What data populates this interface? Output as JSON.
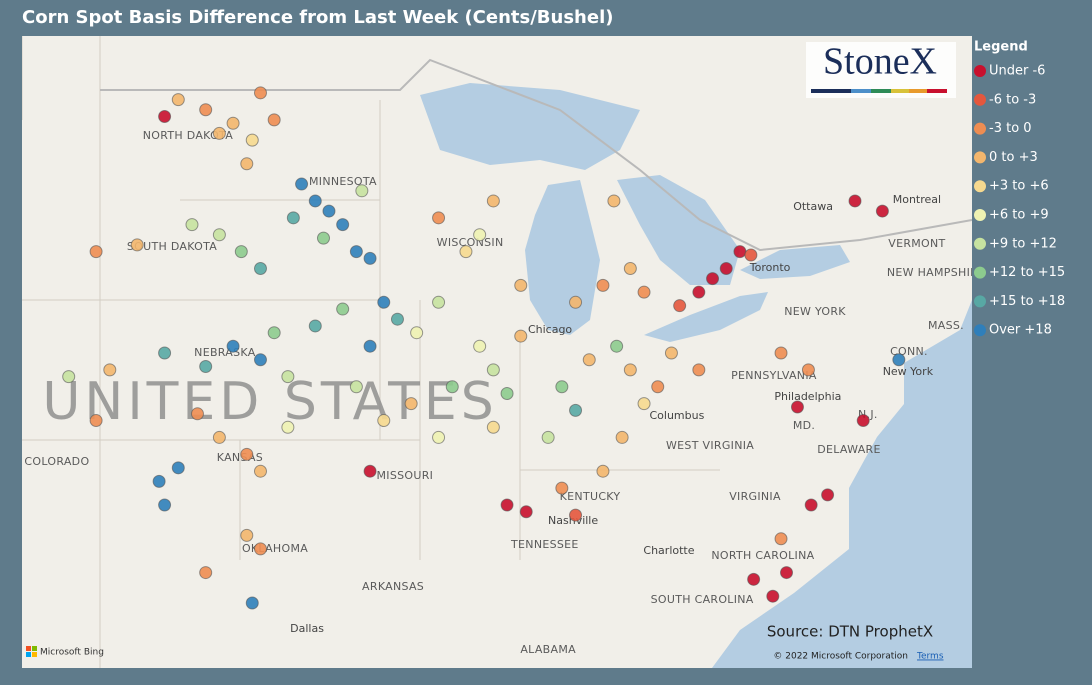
{
  "header": {
    "title": "Corn Spot Basis Difference from Last Week (Cents/Bushel)"
  },
  "logo": "StoneX",
  "legend": {
    "title": "Legend",
    "items": [
      {
        "label": "Under -6",
        "color": "#c8102e"
      },
      {
        "label": "-6 to -3",
        "color": "#e4573d"
      },
      {
        "label": "-3 to 0",
        "color": "#ee8d52"
      },
      {
        "label": "0 to +3",
        "color": "#f3b66d"
      },
      {
        "label": "+3 to +6",
        "color": "#f6d98f"
      },
      {
        "label": "+6 to +9",
        "color": "#eef2b2"
      },
      {
        "label": "+9 to +12",
        "color": "#c6e2a0"
      },
      {
        "label": "+12 to +15",
        "color": "#8dcb8e"
      },
      {
        "label": "+15 to +18",
        "color": "#58a8a4"
      },
      {
        "label": "Over +18",
        "color": "#2f7fba"
      }
    ]
  },
  "map": {
    "country": [
      {
        "text": "UNITED STATES",
        "lon": -97.15,
        "lat": 39.46
      }
    ],
    "states": [
      {
        "text": "NORTH DAKOTA",
        "lon": -100.15,
        "lat": 47.42
      },
      {
        "text": "MINNESOTA",
        "lon": -94.49,
        "lat": 46.06
      },
      {
        "text": "SOUTH DAKOTA",
        "lon": -100.73,
        "lat": 44.14
      },
      {
        "text": "WISCONSIN",
        "lon": -89.85,
        "lat": 44.26
      },
      {
        "text": "NEBRASKA",
        "lon": -98.8,
        "lat": 41.0
      },
      {
        "text": "COLORADO",
        "lon": -104.93,
        "lat": 37.77
      },
      {
        "text": "KANSAS",
        "lon": -98.25,
        "lat": 37.89
      },
      {
        "text": "MISSOURI",
        "lon": -92.23,
        "lat": 37.36
      },
      {
        "text": "OKLAHOMA",
        "lon": -96.97,
        "lat": 35.2
      },
      {
        "text": "ARKANSAS",
        "lon": -92.66,
        "lat": 34.07
      },
      {
        "text": "KENTUCKY",
        "lon": -85.47,
        "lat": 36.74
      },
      {
        "text": "TENNESSEE",
        "lon": -87.12,
        "lat": 35.32
      },
      {
        "text": "ALABAMA",
        "lon": -87.0,
        "lat": 32.21
      },
      {
        "text": "WEST VIRGINIA",
        "lon": -81.09,
        "lat": 38.25
      },
      {
        "text": "VIRGINIA",
        "lon": -79.45,
        "lat": 36.74
      },
      {
        "text": "NORTH CAROLINA",
        "lon": -79.16,
        "lat": 34.99
      },
      {
        "text": "SOUTH CAROLINA",
        "lon": -81.38,
        "lat": 33.69
      },
      {
        "text": "PENNSYLVANIA",
        "lon": -78.76,
        "lat": 40.32
      },
      {
        "text": "NEW YORK",
        "lon": -77.26,
        "lat": 42.21
      },
      {
        "text": "MD.",
        "lon": -77.66,
        "lat": 38.84
      },
      {
        "text": "DELAWARE",
        "lon": -76.02,
        "lat": 38.13
      },
      {
        "text": "N.J.",
        "lon": -75.33,
        "lat": 39.16
      },
      {
        "text": "CONN.",
        "lon": -73.83,
        "lat": 41.03
      },
      {
        "text": "VERMONT",
        "lon": -73.54,
        "lat": 44.23
      },
      {
        "text": "NEW HAMPSHIRE",
        "lon": -72.84,
        "lat": 43.37
      },
      {
        "text": "MASS.",
        "lon": -72.48,
        "lat": 41.8
      }
    ],
    "cities": [
      {
        "text": "Dallas",
        "lon": -95.8,
        "lat": 32.83
      },
      {
        "text": "Nashville",
        "lon": -86.09,
        "lat": 36.03
      },
      {
        "text": "Chicago",
        "lon": -86.93,
        "lat": 41.68
      },
      {
        "text": "Columbus",
        "lon": -82.3,
        "lat": 39.13
      },
      {
        "text": "Charlotte",
        "lon": -82.59,
        "lat": 35.14
      },
      {
        "text": "Philadelphia",
        "lon": -77.52,
        "lat": 39.7
      },
      {
        "text": "New York",
        "lon": -73.87,
        "lat": 40.44
      },
      {
        "text": "Toronto",
        "lon": -78.9,
        "lat": 43.52
      },
      {
        "text": "Ottawa",
        "lon": -77.33,
        "lat": 45.32
      },
      {
        "text": "Montreal",
        "lon": -73.54,
        "lat": 45.53
      }
    ]
  },
  "points": [
    [
      -100.5,
      48.5,
      3
    ],
    [
      -99.5,
      48.2,
      2
    ],
    [
      -98.5,
      47.8,
      3
    ],
    [
      -97.5,
      48.7,
      2
    ],
    [
      -97.8,
      47.3,
      4
    ],
    [
      -99,
      47.5,
      3
    ],
    [
      -101,
      48,
      0
    ],
    [
      -98,
      46.6,
      3
    ],
    [
      -97,
      47.9,
      2
    ],
    [
      -96,
      46,
      9
    ],
    [
      -95.5,
      45.5,
      9
    ],
    [
      -95,
      45.2,
      9
    ],
    [
      -94.5,
      44.8,
      9
    ],
    [
      -96.3,
      45,
      8
    ],
    [
      -95.2,
      44.4,
      7
    ],
    [
      -93.8,
      45.8,
      6
    ],
    [
      -94,
      44,
      9
    ],
    [
      -93.5,
      43.8,
      9
    ],
    [
      -99,
      44.5,
      6
    ],
    [
      -98.2,
      44,
      7
    ],
    [
      -97.5,
      43.5,
      8
    ],
    [
      -100,
      44.8,
      6
    ],
    [
      -102,
      44.2,
      3
    ],
    [
      -103.5,
      44,
      2
    ],
    [
      -93,
      42.5,
      9
    ],
    [
      -92.5,
      42,
      8
    ],
    [
      -91.8,
      41.6,
      5
    ],
    [
      -94.5,
      42.3,
      7
    ],
    [
      -95.5,
      41.8,
      8
    ],
    [
      -93.5,
      41.2,
      9
    ],
    [
      -91,
      42.5,
      6
    ],
    [
      -98.5,
      41.2,
      9
    ],
    [
      -97.5,
      40.8,
      9
    ],
    [
      -99.5,
      40.6,
      8
    ],
    [
      -97,
      41.6,
      7
    ],
    [
      -96.5,
      40.3,
      6
    ],
    [
      -101,
      41,
      8
    ],
    [
      -100.5,
      37.6,
      9
    ],
    [
      -101.2,
      37.2,
      9
    ],
    [
      -99,
      38.5,
      3
    ],
    [
      -98,
      38,
      2
    ],
    [
      -97.5,
      37.5,
      3
    ],
    [
      -99.8,
      39.2,
      2
    ],
    [
      -96.5,
      38.8,
      5
    ],
    [
      -98,
      35.6,
      3
    ],
    [
      -97.5,
      35.2,
      2
    ],
    [
      -101,
      36.5,
      9
    ],
    [
      -99.5,
      34.5,
      2
    ],
    [
      -97.8,
      33.6,
      9
    ],
    [
      -103,
      40.5,
      3
    ],
    [
      -103.5,
      39,
      2
    ],
    [
      -104.5,
      40.3,
      6
    ],
    [
      -93,
      39,
      4
    ],
    [
      -92,
      39.5,
      3
    ],
    [
      -93.5,
      37.5,
      0
    ],
    [
      -91,
      38.5,
      5
    ],
    [
      -94,
      40,
      6
    ],
    [
      -90,
      44,
      4
    ],
    [
      -89.5,
      44.5,
      5
    ],
    [
      -88,
      43,
      3
    ],
    [
      -91,
      45,
      2
    ],
    [
      -89,
      45.5,
      3
    ],
    [
      -89,
      40.5,
      6
    ],
    [
      -88.5,
      39.8,
      7
    ],
    [
      -89.5,
      41.2,
      5
    ],
    [
      -90.5,
      40,
      7
    ],
    [
      -88,
      41.5,
      3
    ],
    [
      -89,
      38.8,
      4
    ],
    [
      -86.5,
      40,
      7
    ],
    [
      -86,
      39.3,
      8
    ],
    [
      -87,
      38.5,
      6
    ],
    [
      -85.5,
      40.8,
      3
    ],
    [
      -84,
      40.5,
      3
    ],
    [
      -83,
      40,
      2
    ],
    [
      -82.5,
      41,
      3
    ],
    [
      -81.5,
      40.5,
      2
    ],
    [
      -84.5,
      41.2,
      7
    ],
    [
      -83.5,
      39.5,
      4
    ],
    [
      -85,
      43,
      2
    ],
    [
      -84,
      43.5,
      3
    ],
    [
      -83.5,
      42.8,
      2
    ],
    [
      -86,
      42.5,
      3
    ],
    [
      -84.6,
      45.5,
      3
    ],
    [
      -81,
      43.2,
      0
    ],
    [
      -80.5,
      43.5,
      0
    ],
    [
      -81.5,
      42.8,
      0
    ],
    [
      -80,
      44,
      0
    ],
    [
      -82.2,
      42.4,
      1
    ],
    [
      -79.6,
      43.9,
      1
    ],
    [
      -85,
      37.5,
      3
    ],
    [
      -86.5,
      37,
      2
    ],
    [
      -88.5,
      36.5,
      0
    ],
    [
      -87.8,
      36.3,
      0
    ],
    [
      -86,
      36.2,
      1
    ],
    [
      -84.3,
      38.5,
      3
    ],
    [
      -75.8,
      45.5,
      0
    ],
    [
      -74.8,
      45.2,
      0
    ],
    [
      -77.5,
      40.5,
      2
    ],
    [
      -78.5,
      41,
      2
    ],
    [
      -75.5,
      39,
      0
    ],
    [
      -74.2,
      40.8,
      9
    ],
    [
      -76.8,
      36.8,
      0
    ],
    [
      -77.4,
      36.5,
      0
    ],
    [
      -78.3,
      34.5,
      0
    ],
    [
      -78.5,
      35.5,
      2
    ],
    [
      -79.5,
      34.3,
      0
    ],
    [
      -78.8,
      33.8,
      0
    ],
    [
      -77.9,
      39.4,
      0
    ]
  ],
  "source": "Source: DTN ProphetX",
  "footer": {
    "bing": "Microsoft Bing",
    "copyright": "© 2022 Microsoft Corporation",
    "terms": "Terms"
  }
}
